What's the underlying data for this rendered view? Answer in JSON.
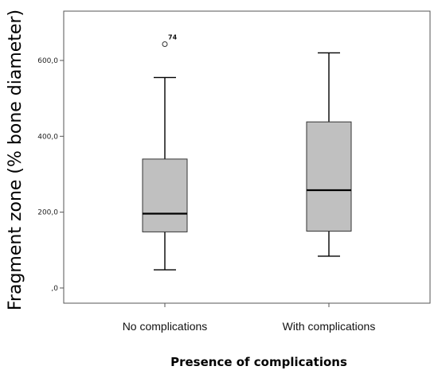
{
  "chart_data": {
    "type": "boxplot",
    "xlabel": "Presence of complications",
    "ylabel": "Fragment zone (% bone diameter)",
    "ylim": [
      -40,
      730
    ],
    "y_ticks": [
      {
        "value": 0,
        "label": ",0"
      },
      {
        "value": 200,
        "label": "200,0"
      },
      {
        "value": 400,
        "label": "400,0"
      },
      {
        "value": 600,
        "label": "600,0"
      }
    ],
    "categories": [
      "No complications",
      "With complications"
    ],
    "boxes": [
      {
        "category": "No complications",
        "min": 48,
        "q1": 148,
        "median": 196,
        "q3": 340,
        "max": 555,
        "outliers": [
          {
            "value": 643,
            "label": "74"
          }
        ]
      },
      {
        "category": "With complications",
        "min": 84,
        "q1": 150,
        "median": 258,
        "q3": 438,
        "max": 620,
        "outliers": []
      }
    ],
    "box_color": "#c0c0c0",
    "grid": false
  }
}
